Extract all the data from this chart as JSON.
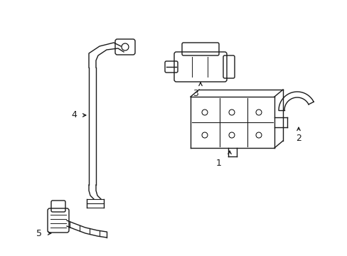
{
  "bg_color": "#ffffff",
  "line_color": "#1a1a1a",
  "label_color": "#000000",
  "figsize": [
    4.89,
    3.6
  ],
  "dpi": 100,
  "lw": 1.0
}
